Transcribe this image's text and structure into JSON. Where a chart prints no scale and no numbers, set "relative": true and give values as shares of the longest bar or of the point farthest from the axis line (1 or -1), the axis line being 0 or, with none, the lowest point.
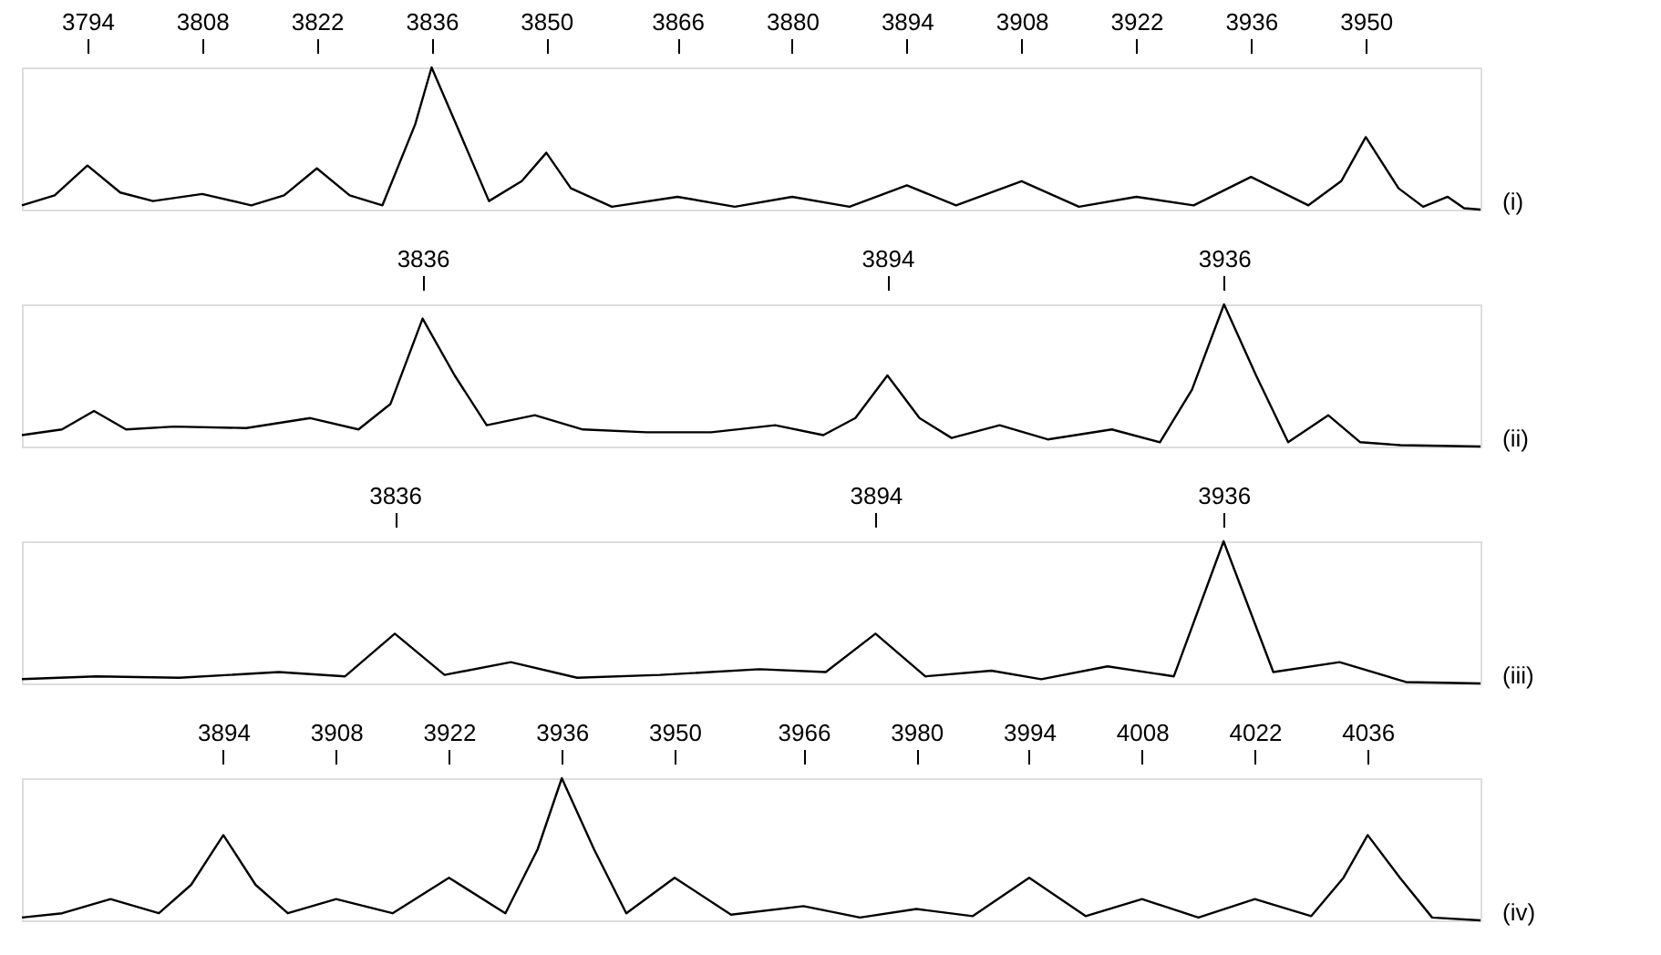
{
  "chart_data": [
    {
      "type": "line",
      "relative": true,
      "tick_labels": "x",
      "xlim": [
        3786,
        3964
      ],
      "xticks": [
        3794,
        3808,
        3822,
        3836,
        3850,
        3866,
        3880,
        3894,
        3908,
        3922,
        3936,
        3950
      ],
      "x": [
        3786,
        3790,
        3794,
        3798,
        3802,
        3808,
        3814,
        3818,
        3822,
        3826,
        3830,
        3834,
        3836,
        3839,
        3843,
        3847,
        3850,
        3853,
        3858,
        3866,
        3873,
        3880,
        3887,
        3894,
        3900,
        3908,
        3915,
        3922,
        3929,
        3936,
        3943,
        3947,
        3950,
        3954,
        3957,
        3960,
        3962,
        3964
      ],
      "series": [
        {
          "color": "#000000",
          "values": [
            0.03,
            0.1,
            0.31,
            0.12,
            0.06,
            0.11,
            0.03,
            0.1,
            0.29,
            0.1,
            0.03,
            0.6,
            1.0,
            0.6,
            0.06,
            0.2,
            0.4,
            0.15,
            0.02,
            0.09,
            0.02,
            0.09,
            0.02,
            0.17,
            0.03,
            0.2,
            0.02,
            0.09,
            0.03,
            0.23,
            0.03,
            0.2,
            0.51,
            0.15,
            0.02,
            0.09,
            0.01,
            0
          ]
        }
      ],
      "annotations": [
        "(i)"
      ]
    },
    {
      "type": "line",
      "relative": true,
      "tick_labels": "x",
      "xlim": [
        3786,
        3968
      ],
      "xticks": [
        3836,
        3894,
        3936
      ],
      "x": [
        3786,
        3791,
        3795,
        3799,
        3805,
        3814,
        3822,
        3828,
        3832,
        3836,
        3840,
        3844,
        3850,
        3856,
        3864,
        3872,
        3880,
        3886,
        3890,
        3894,
        3898,
        3902,
        3908,
        3914,
        3922,
        3928,
        3932,
        3936,
        3940,
        3944,
        3949,
        3953,
        3958,
        3968
      ],
      "series": [
        {
          "color": "#000000",
          "values": [
            0.08,
            0.12,
            0.25,
            0.12,
            0.14,
            0.13,
            0.2,
            0.12,
            0.3,
            0.9,
            0.5,
            0.15,
            0.22,
            0.12,
            0.1,
            0.1,
            0.15,
            0.08,
            0.2,
            0.5,
            0.2,
            0.06,
            0.15,
            0.05,
            0.12,
            0.03,
            0.4,
            1.0,
            0.5,
            0.03,
            0.22,
            0.03,
            0.01,
            0
          ]
        }
      ],
      "annotations": [
        "(ii)"
      ]
    },
    {
      "type": "line",
      "relative": true,
      "tick_labels": "x",
      "xlim": [
        3791,
        3967
      ],
      "xticks": [
        3836,
        3894,
        3936
      ],
      "x": [
        3791,
        3800,
        3810,
        3822,
        3830,
        3836,
        3842,
        3850,
        3858,
        3868,
        3880,
        3888,
        3894,
        3900,
        3908,
        3914,
        3922,
        3930,
        3936,
        3942,
        3950,
        3958,
        3967
      ],
      "series": [
        {
          "color": "#000000",
          "values": [
            0.03,
            0.05,
            0.04,
            0.08,
            0.05,
            0.35,
            0.06,
            0.15,
            0.04,
            0.06,
            0.1,
            0.08,
            0.35,
            0.05,
            0.09,
            0.03,
            0.12,
            0.05,
            1.0,
            0.08,
            0.15,
            0.01,
            0
          ]
        }
      ],
      "annotations": [
        "(iii)"
      ]
    },
    {
      "type": "line",
      "relative": true,
      "tick_labels": "x",
      "xlim": [
        3869,
        4050
      ],
      "xticks": [
        3894,
        3908,
        3922,
        3936,
        3950,
        3966,
        3980,
        3994,
        4008,
        4022,
        4036
      ],
      "x": [
        3869,
        3874,
        3880,
        3886,
        3890,
        3894,
        3898,
        3902,
        3908,
        3915,
        3922,
        3929,
        3933,
        3936,
        3940,
        3944,
        3950,
        3957,
        3966,
        3973,
        3980,
        3987,
        3994,
        4001,
        4008,
        4015,
        4022,
        4029,
        4033,
        4036,
        4040,
        4044,
        4050
      ],
      "series": [
        {
          "color": "#000000",
          "values": [
            0.02,
            0.05,
            0.15,
            0.05,
            0.25,
            0.6,
            0.25,
            0.05,
            0.15,
            0.05,
            0.3,
            0.05,
            0.5,
            1.0,
            0.5,
            0.05,
            0.3,
            0.04,
            0.1,
            0.02,
            0.08,
            0.03,
            0.3,
            0.03,
            0.15,
            0.02,
            0.15,
            0.03,
            0.3,
            0.6,
            0.3,
            0.02,
            0
          ]
        }
      ],
      "annotations": [
        "(iv)"
      ]
    }
  ]
}
